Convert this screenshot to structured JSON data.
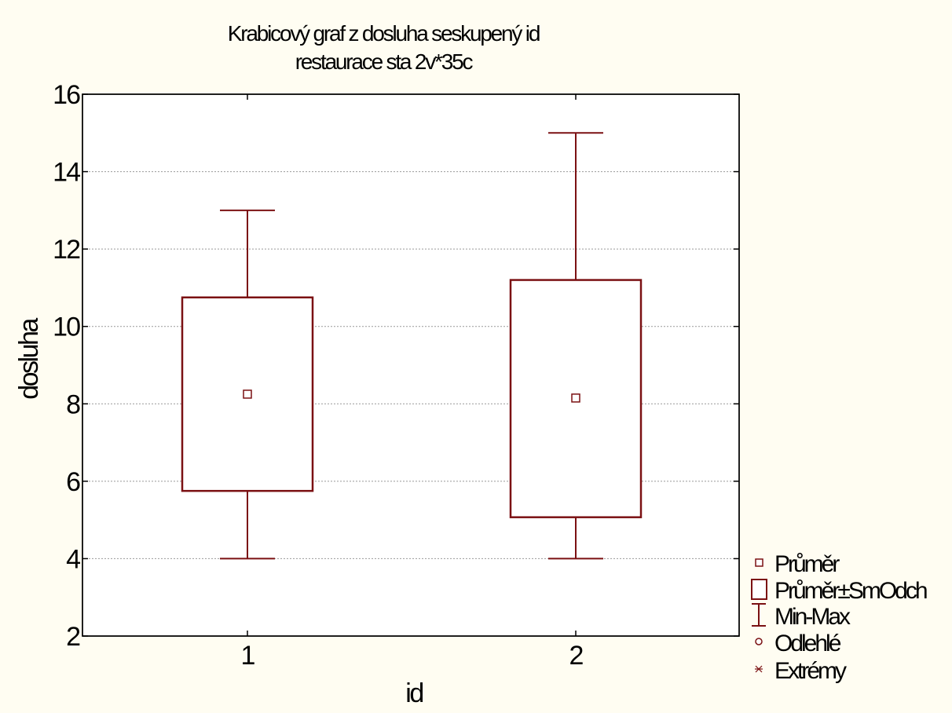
{
  "chart_data": {
    "type": "box",
    "title": "Krabicový graf z dosluha seskupený id",
    "subtitle": "restaurace sta 2v*35c",
    "xlabel": "id",
    "ylabel": "dosluha",
    "categories": [
      "1",
      "2"
    ],
    "ylim": [
      2,
      16
    ],
    "yticks": [
      2,
      4,
      6,
      8,
      10,
      12,
      14,
      16
    ],
    "grid": true,
    "boxes": [
      {
        "category": "1",
        "min": 4.0,
        "max": 13.0,
        "mean": 8.25,
        "box_low": 5.75,
        "box_high": 10.75
      },
      {
        "category": "2",
        "min": 4.0,
        "max": 15.0,
        "mean": 8.15,
        "box_low": 5.07,
        "box_high": 11.2
      }
    ],
    "legend": {
      "position": "bottom-right",
      "entries": [
        {
          "symbol": "mean-square",
          "label": "Průměr"
        },
        {
          "symbol": "box",
          "label": "Průměr±SmOdch"
        },
        {
          "symbol": "whisker",
          "label": "Min-Max"
        },
        {
          "symbol": "circle",
          "label": "Odlehlé"
        },
        {
          "symbol": "star",
          "label": "Extrémy"
        }
      ]
    },
    "colors": {
      "series": "#7b1113",
      "background": "#fffdf2",
      "plot_background": "#ffffff",
      "grid": "#999999"
    }
  }
}
